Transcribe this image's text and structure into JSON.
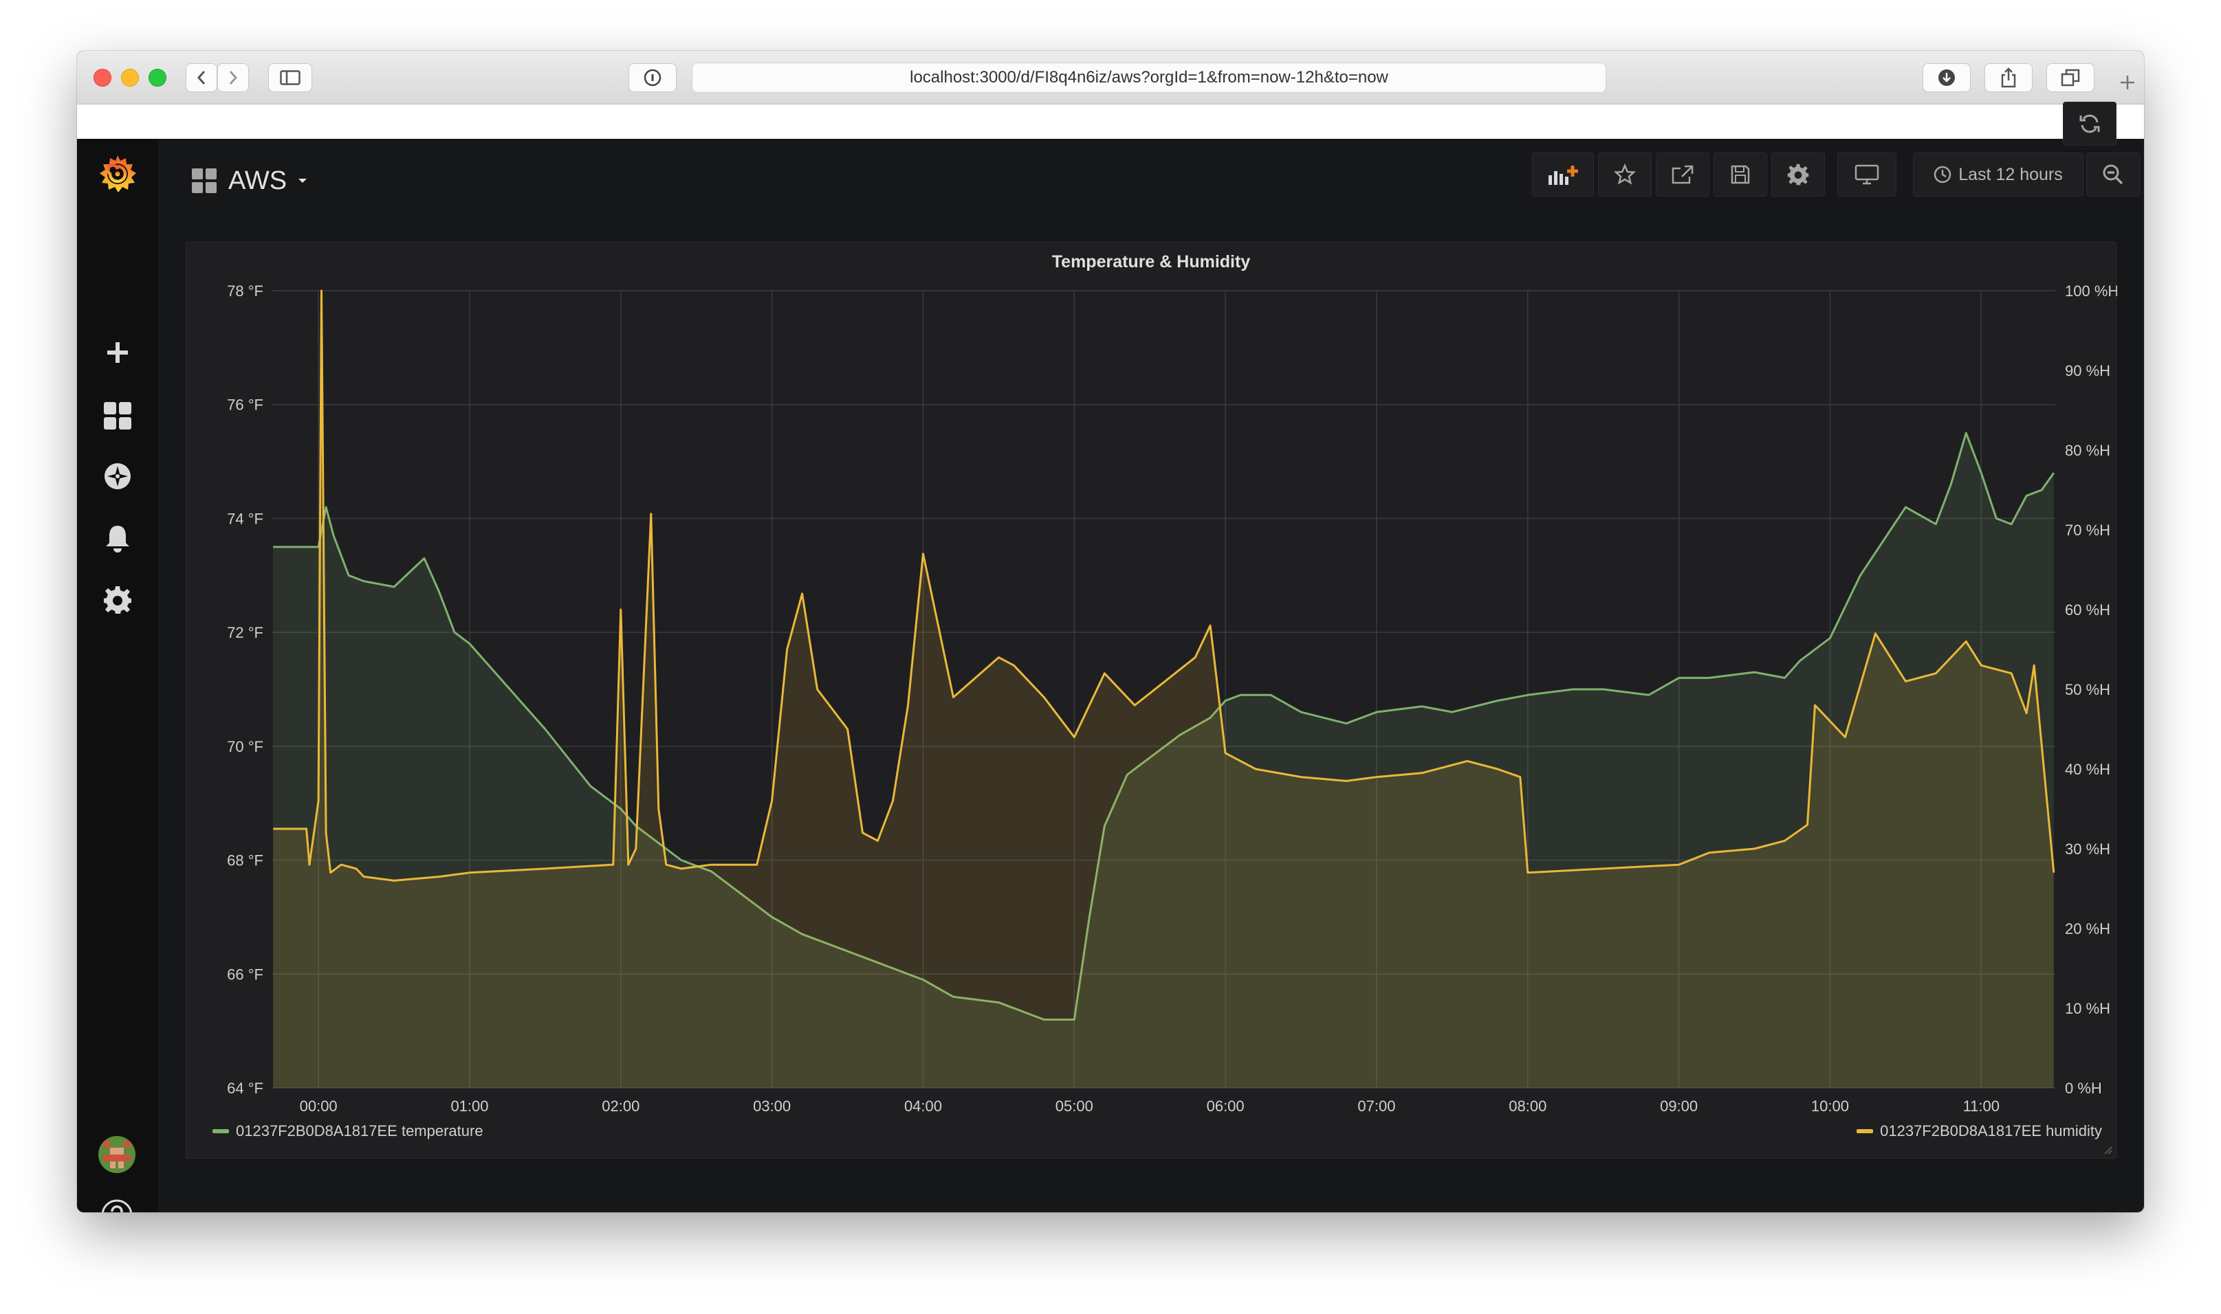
{
  "browser": {
    "url": "localhost:3000/d/FI8q4n6iz/aws?orgId=1&from=now-12h&to=now"
  },
  "header": {
    "dashboard_title": "AWS",
    "time_range_label": "Last 12 hours"
  },
  "panel": {
    "title": "Temperature & Humidity"
  },
  "colors": {
    "temperature": "#7eb26d",
    "humidity": "#eab839",
    "background": "#161719",
    "panel": "#1f1f22",
    "grid": "#3a3b3f"
  },
  "chart_data": {
    "type": "area",
    "title": "Temperature & Humidity",
    "x_ticks": [
      "00:00",
      "01:00",
      "02:00",
      "03:00",
      "04:00",
      "05:00",
      "06:00",
      "07:00",
      "08:00",
      "09:00",
      "10:00",
      "11:00"
    ],
    "x_range_hours": [
      -0.31,
      11.49
    ],
    "y_left": {
      "unit": "°F",
      "range": [
        64,
        78
      ],
      "ticks": [
        "64 °F",
        "66 °F",
        "68 °F",
        "70 °F",
        "72 °F",
        "74 °F",
        "76 °F",
        "78 °F"
      ]
    },
    "y_right": {
      "unit": "%H",
      "range": [
        0,
        100
      ],
      "ticks": [
        "0 %H",
        "10 %H",
        "20 %H",
        "30 %H",
        "40 %H",
        "50 %H",
        "60 %H",
        "70 %H",
        "80 %H",
        "90 %H",
        "100 %H"
      ]
    },
    "grid": true,
    "legend_placement": "bottom",
    "series": [
      {
        "name": "01237F2B0D8A1817EE temperature",
        "axis": "left",
        "x": [
          -0.3,
          0.0,
          0.05,
          0.1,
          0.2,
          0.3,
          0.5,
          0.7,
          0.8,
          0.9,
          1.0,
          1.2,
          1.5,
          1.8,
          2.0,
          2.1,
          2.2,
          2.4,
          2.6,
          2.8,
          3.0,
          3.2,
          3.5,
          3.8,
          4.0,
          4.2,
          4.5,
          4.8,
          5.0,
          5.1,
          5.2,
          5.35,
          5.5,
          5.7,
          5.9,
          6.0,
          6.1,
          6.3,
          6.5,
          6.8,
          7.0,
          7.3,
          7.5,
          7.8,
          8.0,
          8.3,
          8.5,
          8.8,
          9.0,
          9.2,
          9.5,
          9.7,
          9.8,
          10.0,
          10.2,
          10.4,
          10.5,
          10.7,
          10.8,
          10.9,
          11.0,
          11.1,
          11.2,
          11.3,
          11.4,
          11.48
        ],
        "y": [
          73.5,
          73.5,
          74.2,
          73.7,
          73.0,
          72.9,
          72.8,
          73.3,
          72.7,
          72.0,
          71.8,
          71.2,
          70.3,
          69.3,
          68.9,
          68.6,
          68.4,
          68.0,
          67.8,
          67.4,
          67.0,
          66.7,
          66.4,
          66.1,
          65.9,
          65.6,
          65.5,
          65.2,
          65.2,
          67.0,
          68.6,
          69.5,
          69.8,
          70.2,
          70.5,
          70.8,
          70.9,
          70.9,
          70.6,
          70.4,
          70.6,
          70.7,
          70.6,
          70.8,
          70.9,
          71.0,
          71.0,
          70.9,
          71.2,
          71.2,
          71.3,
          71.2,
          71.5,
          71.9,
          73.0,
          73.8,
          74.2,
          73.9,
          74.6,
          75.5,
          74.8,
          74.0,
          73.9,
          74.4,
          74.5,
          74.8
        ]
      },
      {
        "name": "01237F2B0D8A1817EE humidity",
        "axis": "right",
        "x": [
          -0.3,
          -0.08,
          -0.06,
          0.0,
          0.02,
          0.05,
          0.08,
          0.15,
          0.25,
          0.3,
          0.5,
          0.8,
          1.0,
          1.5,
          1.95,
          2.0,
          2.05,
          2.1,
          2.2,
          2.25,
          2.3,
          2.4,
          2.6,
          2.9,
          3.0,
          3.1,
          3.2,
          3.3,
          3.5,
          3.6,
          3.7,
          3.8,
          3.9,
          4.0,
          4.2,
          4.5,
          4.6,
          4.8,
          5.0,
          5.2,
          5.4,
          5.6,
          5.8,
          5.9,
          6.0,
          6.2,
          6.5,
          6.8,
          7.0,
          7.3,
          7.6,
          7.8,
          7.95,
          8.0,
          8.5,
          9.0,
          9.2,
          9.5,
          9.7,
          9.85,
          9.9,
          10.1,
          10.3,
          10.5,
          10.7,
          10.8,
          10.9,
          11.0,
          11.2,
          11.3,
          11.35,
          11.48
        ],
        "y": [
          32.5,
          32.5,
          28.0,
          36.0,
          100.0,
          32.0,
          27.0,
          28.0,
          27.5,
          26.5,
          26.0,
          26.5,
          27.0,
          27.5,
          28.0,
          60.0,
          28.0,
          30.0,
          72.0,
          35.0,
          28.0,
          27.5,
          28.0,
          28.0,
          36.0,
          55.0,
          62.0,
          50.0,
          45.0,
          32.0,
          31.0,
          36.0,
          48.0,
          67.0,
          49.0,
          54.0,
          53.0,
          49.0,
          44.0,
          52.0,
          48.0,
          51.0,
          54.0,
          58.0,
          42.0,
          40.0,
          39.0,
          38.5,
          39.0,
          39.5,
          41.0,
          40.0,
          39.0,
          27.0,
          27.5,
          28.0,
          29.5,
          30.0,
          31.0,
          33.0,
          48.0,
          44.0,
          57.0,
          51.0,
          52.0,
          54.0,
          56.0,
          53.0,
          52.0,
          47.0,
          53.0,
          27.0
        ]
      }
    ]
  }
}
